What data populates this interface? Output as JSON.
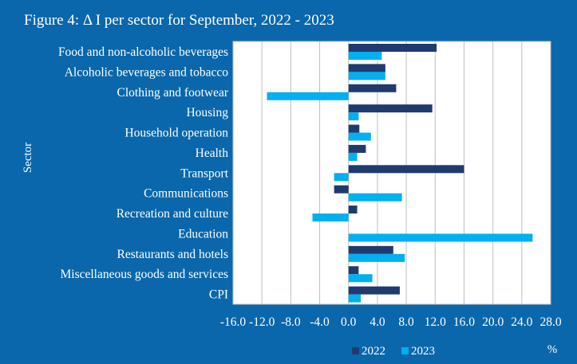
{
  "chart_data": {
    "type": "bar",
    "orientation": "horizontal",
    "title": "Figure  4: Δ I per sector for September, 2022 - 2023",
    "ylabel": "Sector",
    "xlabel": "%",
    "xlim": [
      -16.0,
      28.0
    ],
    "xticks": [
      "-16.0",
      "-12.0",
      "-8.0",
      "-4.0",
      "0.0",
      "4.0",
      "8.0",
      "12.0",
      "16.0",
      "20.0",
      "24.0",
      "28.0"
    ],
    "xtick_values": [
      -16,
      -12,
      -8,
      -4,
      0,
      4,
      8,
      12,
      16,
      20,
      24,
      28
    ],
    "grid": true,
    "legend_position": "bottom",
    "categories": [
      "Food and non-alcoholic beverages",
      "Alcoholic beverages and tobacco",
      "Clothing and footwear",
      "Housing",
      "Household operation",
      "Health",
      "Transport",
      "Communications",
      "Recreation and culture",
      "Education",
      "Restaurants and hotels",
      "Miscellaneous goods and services",
      "CPI"
    ],
    "series": [
      {
        "name": "2022",
        "color": "#1f3b6e",
        "values": [
          12.2,
          5.1,
          6.6,
          11.6,
          1.5,
          2.4,
          16.0,
          -2.0,
          1.2,
          0.0,
          6.2,
          1.4,
          7.1
        ]
      },
      {
        "name": "2023",
        "color": "#00b0f0",
        "values": [
          4.6,
          5.1,
          -11.3,
          1.4,
          3.1,
          1.2,
          -2.0,
          7.4,
          -5.0,
          25.5,
          7.8,
          3.3,
          1.7
        ]
      }
    ]
  }
}
